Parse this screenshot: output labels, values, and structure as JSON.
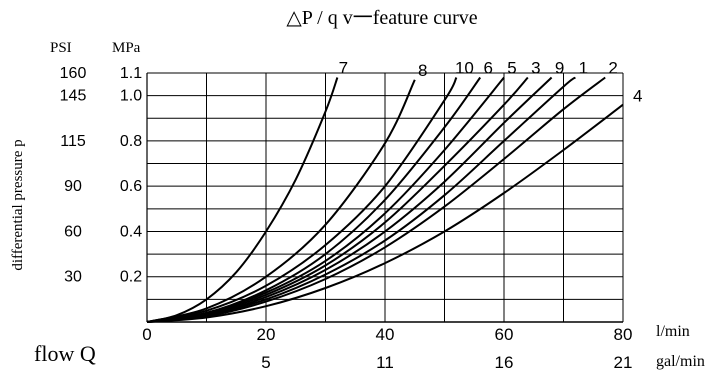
{
  "chart_data": {
    "type": "line",
    "title": "△P / q v一feature curve",
    "xlabel": "flow Q",
    "ylabel": "differential pressure p",
    "x_unit_primary": "l/min",
    "x_unit_secondary": "gal/min",
    "y_unit_left": "PSI",
    "y_unit_right": "MPa",
    "xlim": [
      0,
      80
    ],
    "ylim": [
      0,
      1.1
    ],
    "x_ticks": [
      {
        "value": 0,
        "label": "0",
        "gal": ""
      },
      {
        "value": 20,
        "label": "20",
        "gal": "5"
      },
      {
        "value": 40,
        "label": "40",
        "gal": "11"
      },
      {
        "value": 60,
        "label": "60",
        "gal": "16"
      },
      {
        "value": 80,
        "label": "80",
        "gal": "21"
      }
    ],
    "y_ticks": [
      {
        "value": 0.2,
        "mpa": "0.2",
        "psi": "30"
      },
      {
        "value": 0.4,
        "mpa": "0.4",
        "psi": "60"
      },
      {
        "value": 0.6,
        "mpa": "0.6",
        "psi": "90"
      },
      {
        "value": 0.8,
        "mpa": "0.8",
        "psi": "115"
      },
      {
        "value": 1.0,
        "mpa": "1.0",
        "psi": "145"
      },
      {
        "value": 1.1,
        "mpa": "1.1",
        "psi": "160"
      }
    ],
    "x_grid": [
      10,
      20,
      30,
      40,
      50,
      60,
      70,
      80
    ],
    "y_grid": [
      0.1,
      0.2,
      0.3,
      0.4,
      0.5,
      0.6,
      0.7,
      0.8,
      0.9,
      1.0,
      1.1
    ],
    "grid": true,
    "series": [
      {
        "name": "7",
        "x": [
          0,
          5,
          10,
          15,
          20,
          25,
          30,
          32
        ],
        "y": [
          0,
          0.03,
          0.1,
          0.22,
          0.4,
          0.63,
          0.93,
          1.08
        ]
      },
      {
        "name": "8",
        "x": [
          0,
          10,
          20,
          30,
          40,
          45
        ],
        "y": [
          0,
          0.06,
          0.2,
          0.43,
          0.79,
          1.07
        ]
      },
      {
        "name": "10",
        "x": [
          0,
          10,
          20,
          30,
          40,
          50,
          52
        ],
        "y": [
          0,
          0.05,
          0.16,
          0.34,
          0.6,
          0.98,
          1.08
        ]
      },
      {
        "name": "6",
        "x": [
          0,
          10,
          20,
          30,
          40,
          50,
          56
        ],
        "y": [
          0,
          0.04,
          0.14,
          0.3,
          0.54,
          0.86,
          1.08
        ]
      },
      {
        "name": "5",
        "x": [
          0,
          10,
          20,
          30,
          40,
          50,
          60
        ],
        "y": [
          0,
          0.04,
          0.13,
          0.27,
          0.48,
          0.76,
          1.08
        ]
      },
      {
        "name": "3",
        "x": [
          0,
          10,
          20,
          30,
          40,
          50,
          60,
          64
        ],
        "y": [
          0,
          0.035,
          0.12,
          0.25,
          0.44,
          0.69,
          0.96,
          1.08
        ]
      },
      {
        "name": "9",
        "x": [
          0,
          10,
          20,
          30,
          40,
          50,
          60,
          68
        ],
        "y": [
          0,
          0.03,
          0.11,
          0.23,
          0.4,
          0.62,
          0.88,
          1.08
        ]
      },
      {
        "name": "1",
        "x": [
          0,
          10,
          20,
          30,
          40,
          50,
          60,
          70,
          72
        ],
        "y": [
          0,
          0.03,
          0.1,
          0.21,
          0.36,
          0.56,
          0.8,
          1.04,
          1.08
        ]
      },
      {
        "name": "2",
        "x": [
          0,
          10,
          20,
          30,
          40,
          50,
          60,
          70,
          77
        ],
        "y": [
          0,
          0.025,
          0.09,
          0.19,
          0.33,
          0.51,
          0.72,
          0.94,
          1.08
        ]
      },
      {
        "name": "4",
        "x": [
          0,
          10,
          20,
          30,
          40,
          50,
          60,
          70,
          80
        ],
        "y": [
          0,
          0.02,
          0.07,
          0.15,
          0.26,
          0.4,
          0.57,
          0.76,
          0.96
        ]
      }
    ],
    "line_color": "#000000"
  }
}
